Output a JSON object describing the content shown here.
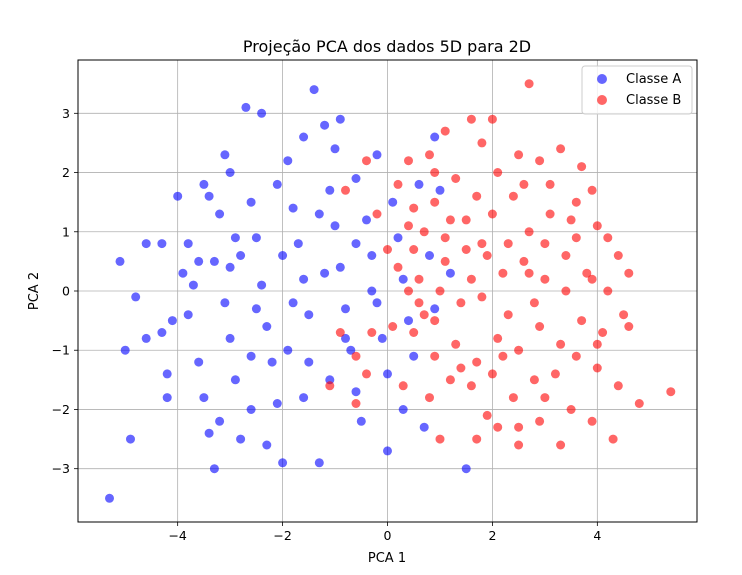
{
  "chart_data": {
    "type": "scatter",
    "title": "Projeção PCA dos dados 5D para 2D",
    "xlabel": "PCA 1",
    "ylabel": "PCA 2",
    "xlim": [
      -5.9,
      5.9
    ],
    "ylim": [
      -3.9,
      3.9
    ],
    "xticks": [
      -4,
      -2,
      0,
      2,
      4
    ],
    "yticks": [
      -3,
      -2,
      -1,
      0,
      1,
      2,
      3
    ],
    "grid": true,
    "legend_position": "top-right",
    "series": [
      {
        "name": "Classe A",
        "color": "#0000ff",
        "points": [
          [
            -5.3,
            -3.5
          ],
          [
            -5.0,
            -1.0
          ],
          [
            -4.9,
            -2.5
          ],
          [
            -4.8,
            -0.1
          ],
          [
            -5.1,
            0.5
          ],
          [
            -4.6,
            0.8
          ],
          [
            -4.3,
            0.8
          ],
          [
            -4.2,
            -1.4
          ],
          [
            -4.2,
            -1.8
          ],
          [
            -4.3,
            -0.7
          ],
          [
            -4.1,
            -0.5
          ],
          [
            -3.9,
            0.3
          ],
          [
            -4.0,
            1.6
          ],
          [
            -3.8,
            0.8
          ],
          [
            -3.6,
            0.5
          ],
          [
            -3.5,
            1.8
          ],
          [
            -3.4,
            1.6
          ],
          [
            -3.2,
            1.3
          ],
          [
            -3.3,
            0.5
          ],
          [
            -3.0,
            0.4
          ],
          [
            -3.1,
            -0.2
          ],
          [
            -3.0,
            -0.8
          ],
          [
            -2.9,
            -1.5
          ],
          [
            -3.2,
            -2.2
          ],
          [
            -3.4,
            -2.4
          ],
          [
            -3.3,
            -3.0
          ],
          [
            -2.8,
            -2.5
          ],
          [
            -2.6,
            -2.0
          ],
          [
            -2.7,
            3.1
          ],
          [
            -2.4,
            3.0
          ],
          [
            -3.1,
            2.3
          ],
          [
            -3.0,
            2.0
          ],
          [
            -2.6,
            1.5
          ],
          [
            -2.5,
            0.9
          ],
          [
            -2.4,
            0.1
          ],
          [
            -2.3,
            -0.6
          ],
          [
            -2.2,
            -1.2
          ],
          [
            -2.1,
            -1.9
          ],
          [
            -2.3,
            -2.6
          ],
          [
            -2.0,
            -2.9
          ],
          [
            -1.9,
            2.2
          ],
          [
            -1.8,
            1.4
          ],
          [
            -1.7,
            0.8
          ],
          [
            -1.6,
            0.2
          ],
          [
            -1.5,
            -0.4
          ],
          [
            -1.5,
            -1.2
          ],
          [
            -1.6,
            -1.8
          ],
          [
            -1.3,
            -2.9
          ],
          [
            -1.4,
            3.4
          ],
          [
            -1.2,
            2.8
          ],
          [
            -1.0,
            2.4
          ],
          [
            -1.1,
            1.7
          ],
          [
            -1.0,
            1.1
          ],
          [
            -0.9,
            0.4
          ],
          [
            -0.8,
            -0.3
          ],
          [
            -0.7,
            -1.0
          ],
          [
            -0.6,
            -1.7
          ],
          [
            -0.5,
            -2.2
          ],
          [
            -0.9,
            2.9
          ],
          [
            -0.6,
            1.9
          ],
          [
            -0.4,
            1.2
          ],
          [
            -0.3,
            0.6
          ],
          [
            -0.2,
            -0.2
          ],
          [
            -0.1,
            -0.8
          ],
          [
            0.0,
            -1.4
          ],
          [
            -0.2,
            2.3
          ],
          [
            0.1,
            1.5
          ],
          [
            0.2,
            0.9
          ],
          [
            0.3,
            0.2
          ],
          [
            0.4,
            -0.5
          ],
          [
            0.5,
            -1.1
          ],
          [
            0.3,
            -2.0
          ],
          [
            0.0,
            -2.7
          ],
          [
            0.8,
            0.6
          ],
          [
            0.9,
            -0.3
          ],
          [
            1.0,
            1.7
          ],
          [
            1.2,
            0.3
          ],
          [
            1.5,
            -3.0
          ],
          [
            0.7,
            -2.3
          ],
          [
            0.6,
            1.8
          ],
          [
            0.9,
            2.6
          ],
          [
            -2.0,
            0.6
          ],
          [
            -1.8,
            -0.2
          ],
          [
            -1.2,
            0.3
          ],
          [
            -1.3,
            1.3
          ],
          [
            -0.8,
            -0.8
          ],
          [
            -2.5,
            -0.3
          ],
          [
            -2.9,
            0.9
          ],
          [
            -3.6,
            -1.2
          ],
          [
            -3.8,
            -0.4
          ],
          [
            -2.1,
            1.8
          ],
          [
            -1.6,
            2.6
          ],
          [
            -0.3,
            0.0
          ],
          [
            -0.6,
            0.8
          ],
          [
            -1.1,
            -1.5
          ],
          [
            -1.9,
            -1.0
          ],
          [
            -2.6,
            -1.1
          ],
          [
            -3.5,
            -1.8
          ],
          [
            -4.6,
            -0.8
          ],
          [
            -3.7,
            0.1
          ],
          [
            -2.8,
            0.6
          ]
        ]
      },
      {
        "name": "Classe B",
        "color": "#ff0000",
        "points": [
          [
            2.7,
            3.5
          ],
          [
            2.0,
            2.9
          ],
          [
            1.6,
            2.9
          ],
          [
            1.1,
            2.7
          ],
          [
            0.8,
            2.3
          ],
          [
            0.4,
            2.2
          ],
          [
            -0.4,
            2.2
          ],
          [
            -0.8,
            1.7
          ],
          [
            0.2,
            1.8
          ],
          [
            0.5,
            1.4
          ],
          [
            0.9,
            1.5
          ],
          [
            1.3,
            1.9
          ],
          [
            1.7,
            1.6
          ],
          [
            2.1,
            2.0
          ],
          [
            2.5,
            2.3
          ],
          [
            2.9,
            2.2
          ],
          [
            3.3,
            2.4
          ],
          [
            3.7,
            2.1
          ],
          [
            3.9,
            1.7
          ],
          [
            3.5,
            1.2
          ],
          [
            3.1,
            1.3
          ],
          [
            2.7,
            1.0
          ],
          [
            2.3,
            0.8
          ],
          [
            1.9,
            0.6
          ],
          [
            1.5,
            0.7
          ],
          [
            1.1,
            0.9
          ],
          [
            0.7,
            1.0
          ],
          [
            0.4,
            1.1
          ],
          [
            0.2,
            0.4
          ],
          [
            0.6,
            0.2
          ],
          [
            1.0,
            0.0
          ],
          [
            1.4,
            -0.2
          ],
          [
            1.8,
            -0.1
          ],
          [
            2.2,
            0.3
          ],
          [
            2.6,
            0.5
          ],
          [
            3.0,
            0.2
          ],
          [
            3.4,
            0.6
          ],
          [
            3.8,
            0.3
          ],
          [
            4.2,
            0.9
          ],
          [
            4.4,
            0.6
          ],
          [
            4.6,
            0.3
          ],
          [
            4.5,
            -0.4
          ],
          [
            4.1,
            -0.7
          ],
          [
            3.7,
            -0.5
          ],
          [
            3.3,
            -0.9
          ],
          [
            2.9,
            -0.6
          ],
          [
            2.5,
            -1.0
          ],
          [
            2.1,
            -0.8
          ],
          [
            1.7,
            -1.2
          ],
          [
            1.3,
            -0.9
          ],
          [
            0.9,
            -1.1
          ],
          [
            0.5,
            -0.7
          ],
          [
            0.1,
            -0.6
          ],
          [
            -0.3,
            -0.7
          ],
          [
            -0.6,
            -1.1
          ],
          [
            -0.9,
            -0.7
          ],
          [
            0.3,
            -1.6
          ],
          [
            0.8,
            -1.8
          ],
          [
            1.2,
            -1.5
          ],
          [
            1.6,
            -1.6
          ],
          [
            2.0,
            -1.4
          ],
          [
            2.4,
            -1.8
          ],
          [
            2.8,
            -1.5
          ],
          [
            3.2,
            -1.4
          ],
          [
            3.6,
            -1.1
          ],
          [
            4.0,
            -1.3
          ],
          [
            4.4,
            -1.6
          ],
          [
            4.8,
            -1.9
          ],
          [
            5.4,
            -1.7
          ],
          [
            4.3,
            -2.5
          ],
          [
            3.9,
            -2.2
          ],
          [
            3.3,
            -2.6
          ],
          [
            2.9,
            -2.2
          ],
          [
            2.5,
            -2.6
          ],
          [
            2.1,
            -2.3
          ],
          [
            1.7,
            -2.5
          ],
          [
            1.0,
            -2.5
          ],
          [
            1.9,
            -2.1
          ],
          [
            -0.6,
            -1.9
          ],
          [
            -1.1,
            -1.6
          ],
          [
            -0.4,
            -1.4
          ],
          [
            0.7,
            -0.4
          ],
          [
            1.5,
            1.2
          ],
          [
            2.0,
            1.3
          ],
          [
            2.6,
            1.8
          ],
          [
            3.1,
            1.8
          ],
          [
            3.6,
            1.5
          ],
          [
            4.0,
            1.1
          ],
          [
            4.6,
            -0.6
          ],
          [
            4.0,
            -0.9
          ],
          [
            3.4,
            0.0
          ],
          [
            2.8,
            -0.2
          ],
          [
            2.3,
            -0.4
          ],
          [
            1.6,
            0.2
          ],
          [
            1.1,
            0.5
          ],
          [
            0.5,
            0.7
          ],
          [
            0.0,
            0.7
          ],
          [
            -0.2,
            1.3
          ],
          [
            0.9,
            2.0
          ],
          [
            1.8,
            2.5
          ],
          [
            2.4,
            1.6
          ],
          [
            3.0,
            0.8
          ],
          [
            3.6,
            0.9
          ],
          [
            4.2,
            0.0
          ],
          [
            3.0,
            -1.8
          ],
          [
            2.2,
            -1.1
          ],
          [
            1.4,
            -1.3
          ],
          [
            0.9,
            -0.5
          ],
          [
            0.4,
            0.0
          ],
          [
            1.2,
            1.2
          ],
          [
            2.5,
            -2.3
          ],
          [
            3.5,
            -2.0
          ],
          [
            3.9,
            0.2
          ],
          [
            2.7,
            0.3
          ],
          [
            1.8,
            0.8
          ],
          [
            0.6,
            -0.2
          ]
        ]
      }
    ]
  }
}
